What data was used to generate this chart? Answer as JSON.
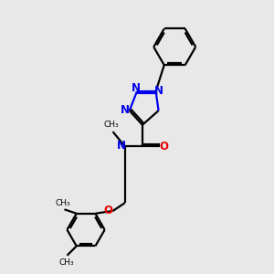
{
  "bg_color": "#e8e8e8",
  "bond_color": "#000000",
  "n_color": "#0000ee",
  "o_color": "#ee0000",
  "line_width": 1.6,
  "font_size": 8.5,
  "fig_size": [
    3.0,
    3.0
  ],
  "dpi": 100,
  "xlim": [
    0,
    10
  ],
  "ylim": [
    0,
    10
  ]
}
